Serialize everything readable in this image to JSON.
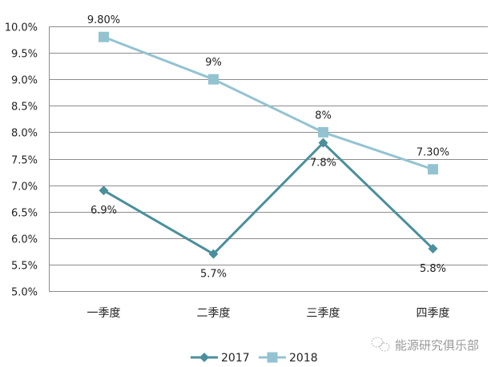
{
  "chart_data": {
    "type": "line",
    "title": "",
    "xlabel": "",
    "ylabel": "",
    "categories": [
      "一季度",
      "二季度",
      "三季度",
      "四季度"
    ],
    "series": [
      {
        "name": "2017",
        "values": [
          6.9,
          5.7,
          7.8,
          5.8
        ],
        "labels": [
          "6.9%",
          "5.7%",
          "7.8%",
          "5.8%"
        ],
        "color": "#4a8f9c",
        "marker": "diamond"
      },
      {
        "name": "2018",
        "values": [
          9.8,
          9.0,
          8.0,
          7.3
        ],
        "labels": [
          "9.80%",
          "9%",
          "8%",
          "7.30%"
        ],
        "color": "#93c3d1",
        "marker": "square"
      }
    ],
    "ylim": [
      5.0,
      10.0
    ],
    "yticks": [
      "10.0%",
      "9.5%",
      "9.0%",
      "8.5%",
      "8.0%",
      "7.5%",
      "7.0%",
      "6.5%",
      "6.0%",
      "5.5%",
      "5.0%"
    ],
    "grid": true,
    "legend_position": "bottom"
  },
  "watermark": {
    "text": "能源研究俱乐部",
    "icon": "wechat-icon"
  }
}
